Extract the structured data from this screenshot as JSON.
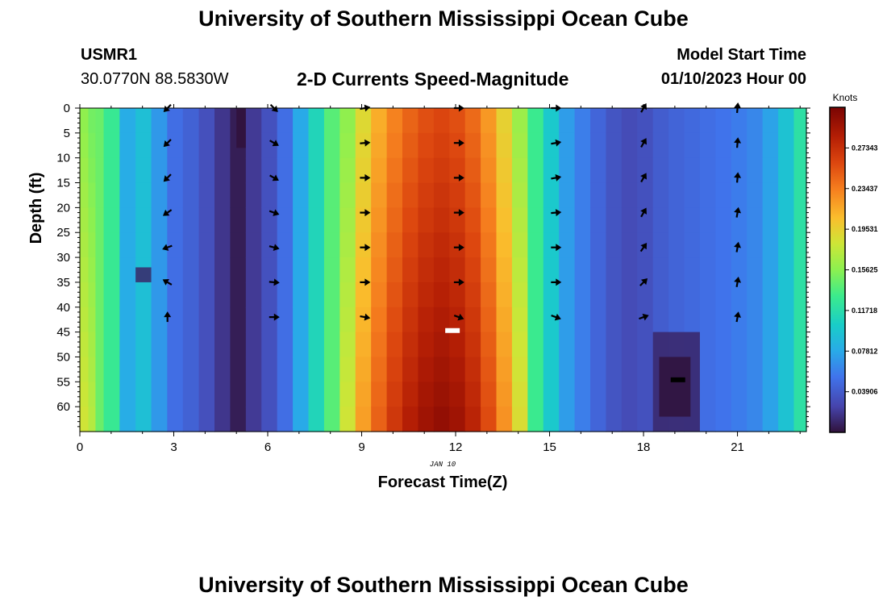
{
  "header": {
    "title": "University of Southern Mississippi Ocean Cube",
    "station_id": "USMR1",
    "station_coords": "30.0770N  88.5830W",
    "subtitle": "2-D Currents Speed-Magnitude",
    "model_start_label": "Model Start Time",
    "model_start_value": "01/10/2023 Hour 00"
  },
  "footer": {
    "title": "University of Southern Mississippi Ocean Cube"
  },
  "chart_data": {
    "type": "heatmap",
    "xlabel": "Forecast Time(Z)",
    "ylabel": "Depth (ft)",
    "date_label": "JAN 10",
    "xlim": [
      0,
      23.2
    ],
    "ylim": [
      0,
      65
    ],
    "y_inverted": true,
    "x_ticks": [
      0,
      3,
      6,
      9,
      12,
      15,
      18,
      21
    ],
    "y_ticks": [
      0,
      5,
      10,
      15,
      20,
      25,
      30,
      35,
      40,
      45,
      50,
      55,
      60
    ],
    "colorbar": {
      "label": "Knots",
      "ticks": [
        "0.27343",
        "0.23437",
        "0.19531",
        "0.15625",
        "0.11718",
        "0.07812",
        "0.03906"
      ],
      "tick_values": [
        0.27343,
        0.23437,
        0.19531,
        0.15625,
        0.11718,
        0.07812,
        0.03906
      ],
      "range": [
        0,
        0.3125
      ]
    },
    "columns": [
      {
        "x0": 0,
        "x1": 0.27,
        "speed": 0.17
      },
      {
        "x0": 0.27,
        "x1": 0.5,
        "speed": 0.16
      },
      {
        "x0": 0.5,
        "x1": 0.76,
        "speed": 0.146
      },
      {
        "x0": 0.76,
        "x1": 1.27,
        "speed": 0.128
      },
      {
        "x0": 1.27,
        "x1": 1.78,
        "speed": 0.08
      },
      {
        "x0": 1.78,
        "x1": 2.28,
        "speed": 0.093
      },
      {
        "x0": 2.28,
        "x1": 2.79,
        "speed": 0.07
      },
      {
        "x0": 2.79,
        "x1": 3.29,
        "speed": 0.05
      },
      {
        "x0": 3.29,
        "x1": 3.8,
        "speed": 0.043
      },
      {
        "x0": 3.8,
        "x1": 4.3,
        "speed": 0.032
      },
      {
        "x0": 4.3,
        "x1": 4.8,
        "speed": 0.018
      },
      {
        "x0": 4.8,
        "x1": 5.3,
        "speed": 0.006
      },
      {
        "x0": 5.3,
        "x1": 5.8,
        "speed": 0.02
      },
      {
        "x0": 5.8,
        "x1": 6.3,
        "speed": 0.033
      },
      {
        "x0": 6.3,
        "x1": 6.8,
        "speed": 0.05
      },
      {
        "x0": 6.8,
        "x1": 7.3,
        "speed": 0.078
      },
      {
        "x0": 7.3,
        "x1": 7.8,
        "speed": 0.11
      },
      {
        "x0": 7.8,
        "x1": 8.3,
        "speed": 0.14
      },
      {
        "x0": 8.3,
        "x1": 8.8,
        "speed": 0.17
      },
      {
        "x0": 8.8,
        "x1": 9.3,
        "speed": 0.205
      },
      {
        "x0": 9.3,
        "x1": 9.8,
        "speed": 0.23
      },
      {
        "x0": 9.8,
        "x1": 10.3,
        "speed": 0.25
      },
      {
        "x0": 10.3,
        "x1": 10.8,
        "speed": 0.265
      },
      {
        "x0": 10.8,
        "x1": 11.3,
        "speed": 0.275
      },
      {
        "x0": 11.3,
        "x1": 11.8,
        "speed": 0.28
      },
      {
        "x0": 11.8,
        "x1": 12.3,
        "speed": 0.275
      },
      {
        "x0": 12.3,
        "x1": 12.8,
        "speed": 0.262
      },
      {
        "x0": 12.8,
        "x1": 13.3,
        "speed": 0.24
      },
      {
        "x0": 13.3,
        "x1": 13.8,
        "speed": 0.21
      },
      {
        "x0": 13.8,
        "x1": 14.3,
        "speed": 0.175
      },
      {
        "x0": 14.3,
        "x1": 14.8,
        "speed": 0.13
      },
      {
        "x0": 14.8,
        "x1": 15.3,
        "speed": 0.1
      },
      {
        "x0": 15.3,
        "x1": 15.8,
        "speed": 0.072
      },
      {
        "x0": 15.8,
        "x1": 16.3,
        "speed": 0.058
      },
      {
        "x0": 16.3,
        "x1": 16.8,
        "speed": 0.045
      },
      {
        "x0": 16.8,
        "x1": 17.3,
        "speed": 0.035
      },
      {
        "x0": 17.3,
        "x1": 17.8,
        "speed": 0.03
      },
      {
        "x0": 17.8,
        "x1": 18.3,
        "speed": 0.033
      },
      {
        "x0": 18.3,
        "x1": 18.8,
        "speed": 0.04
      },
      {
        "x0": 18.8,
        "x1": 19.3,
        "speed": 0.044
      },
      {
        "x0": 19.3,
        "x1": 19.8,
        "speed": 0.047
      },
      {
        "x0": 19.8,
        "x1": 20.3,
        "speed": 0.05
      },
      {
        "x0": 20.3,
        "x1": 20.8,
        "speed": 0.053
      },
      {
        "x0": 20.8,
        "x1": 21.3,
        "speed": 0.057
      },
      {
        "x0": 21.3,
        "x1": 21.8,
        "speed": 0.062
      },
      {
        "x0": 21.8,
        "x1": 22.3,
        "speed": 0.075
      },
      {
        "x0": 22.3,
        "x1": 22.8,
        "speed": 0.095
      },
      {
        "x0": 22.8,
        "x1": 23.2,
        "speed": 0.12
      }
    ],
    "patches": [
      {
        "x0": 18.3,
        "x1": 19.8,
        "y0": 45,
        "y1": 65,
        "speed": 0.01
      },
      {
        "x0": 18.5,
        "x1": 19.5,
        "y0": 50,
        "y1": 62,
        "speed": 0.0
      },
      {
        "x0": 1.78,
        "x1": 2.28,
        "y0": 32,
        "y1": 35,
        "speed": 0.01
      },
      {
        "x0": 5.0,
        "x1": 5.3,
        "y0": 0,
        "y1": 8,
        "speed": 0.0
      }
    ],
    "markers": [
      {
        "x": 11.9,
        "y": 44.7,
        "color": "#ffffff"
      },
      {
        "x": 19.1,
        "y": 54.6,
        "color": "#000000"
      }
    ],
    "vectors": [
      {
        "x": 2.8,
        "angles": [
          225,
          225,
          225,
          215,
          200,
          150,
          90,
          null
        ]
      },
      {
        "x": 6.2,
        "angles": [
          315,
          330,
          330,
          340,
          345,
          355,
          0,
          null
        ]
      },
      {
        "x": 9.1,
        "angles": [
          10,
          5,
          0,
          0,
          0,
          0,
          350,
          null
        ]
      },
      {
        "x": 12.1,
        "angles": [
          0,
          0,
          0,
          0,
          0,
          0,
          340,
          null
        ]
      },
      {
        "x": 15.2,
        "angles": [
          0,
          10,
          10,
          5,
          0,
          0,
          340,
          null
        ]
      },
      {
        "x": 18.0,
        "angles": [
          60,
          60,
          60,
          60,
          55,
          45,
          20,
          null
        ]
      },
      {
        "x": 21.0,
        "angles": [
          85,
          85,
          85,
          80,
          80,
          80,
          80,
          null
        ]
      }
    ],
    "vector_depths": [
      0,
      7,
      14,
      21,
      28,
      35,
      42,
      49
    ]
  }
}
